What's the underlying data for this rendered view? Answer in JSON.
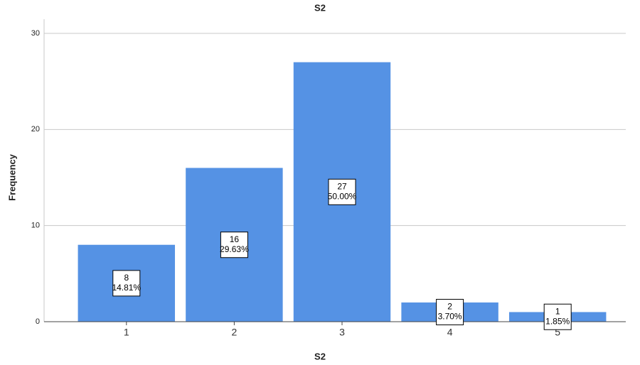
{
  "chart_data": {
    "type": "bar",
    "title": "S2",
    "x_label": "S2",
    "y_label": "Frequency",
    "categories": [
      "1",
      "2",
      "3",
      "4",
      "5"
    ],
    "values": [
      8,
      16,
      27,
      2,
      1
    ],
    "percent_labels": [
      "14.81%",
      "29.63%",
      "50.00%",
      "3.70%",
      "1.85%"
    ],
    "color": "#5592e4",
    "ylim": [
      0,
      30
    ],
    "yticks": [
      0,
      10,
      20,
      30
    ],
    "grid": true
  }
}
